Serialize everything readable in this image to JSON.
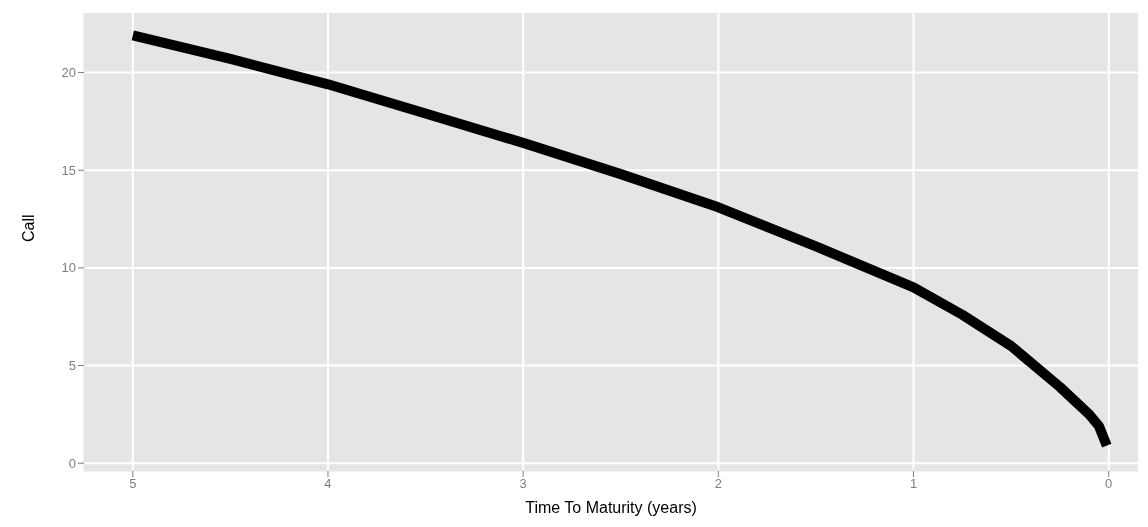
{
  "chart_data": {
    "type": "line",
    "xlabel": "Time To Maturity (years)",
    "ylabel": "Call",
    "x": [
      5,
      4.5,
      4,
      3.5,
      3,
      2.5,
      2,
      1.5,
      1,
      0.75,
      0.5,
      0.25,
      0.1,
      0.05,
      0.01
    ],
    "series": [
      {
        "color": "#000000",
        "values": [
          21.9,
          20.7,
          19.4,
          17.9,
          16.4,
          14.8,
          13.1,
          11.1,
          9.0,
          7.6,
          6.0,
          3.9,
          2.5,
          1.9,
          0.9
        ]
      }
    ],
    "xlim": [
      5.25,
      -0.15
    ],
    "xticks": [
      5,
      4,
      3,
      2,
      1,
      0
    ],
    "ylim": [
      -0.4,
      23.05
    ],
    "yticks": [
      0,
      5,
      10,
      15,
      20
    ],
    "grid": true,
    "marker": "none",
    "line_style": "solid"
  }
}
